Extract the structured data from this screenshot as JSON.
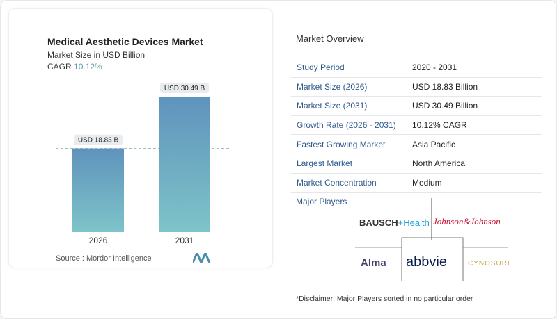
{
  "chart_data": {
    "type": "bar",
    "title": "Medical Aesthetic Devices Market",
    "subtitle": "Market Size in USD Billion",
    "cagr_label": "CAGR",
    "cagr_value": "10.12%",
    "categories": [
      "2026",
      "2031"
    ],
    "values": [
      18.83,
      30.49
    ],
    "data_labels": [
      "USD 18.83 B",
      "USD 30.49 B"
    ],
    "source": "Source :  Mordor Intelligence",
    "bar_color": "#6aa3bf"
  },
  "overview": {
    "title": "Market Overview",
    "rows": [
      {
        "k": "Study Period",
        "v": "2020 - 2031"
      },
      {
        "k": "Market Size (2026)",
        "v": "USD 18.83 Billion"
      },
      {
        "k": "Market Size (2031)",
        "v": "USD 30.49 Billion"
      },
      {
        "k": "Growth Rate (2026 - 2031)",
        "v": "10.12% CAGR"
      },
      {
        "k": "Fastest Growing Market",
        "v": "Asia Pacific"
      },
      {
        "k": "Largest Market",
        "v": "North America"
      },
      {
        "k": "Market Concentration",
        "v": "Medium"
      }
    ]
  },
  "players": {
    "title": "Major Players",
    "logos": [
      "BAUSCH Health",
      "Johnson & Johnson",
      "Alma",
      "abbvie",
      "CYNOSURE"
    ],
    "disclaimer": "*Disclaimer: Major Players sorted in no particular order"
  }
}
